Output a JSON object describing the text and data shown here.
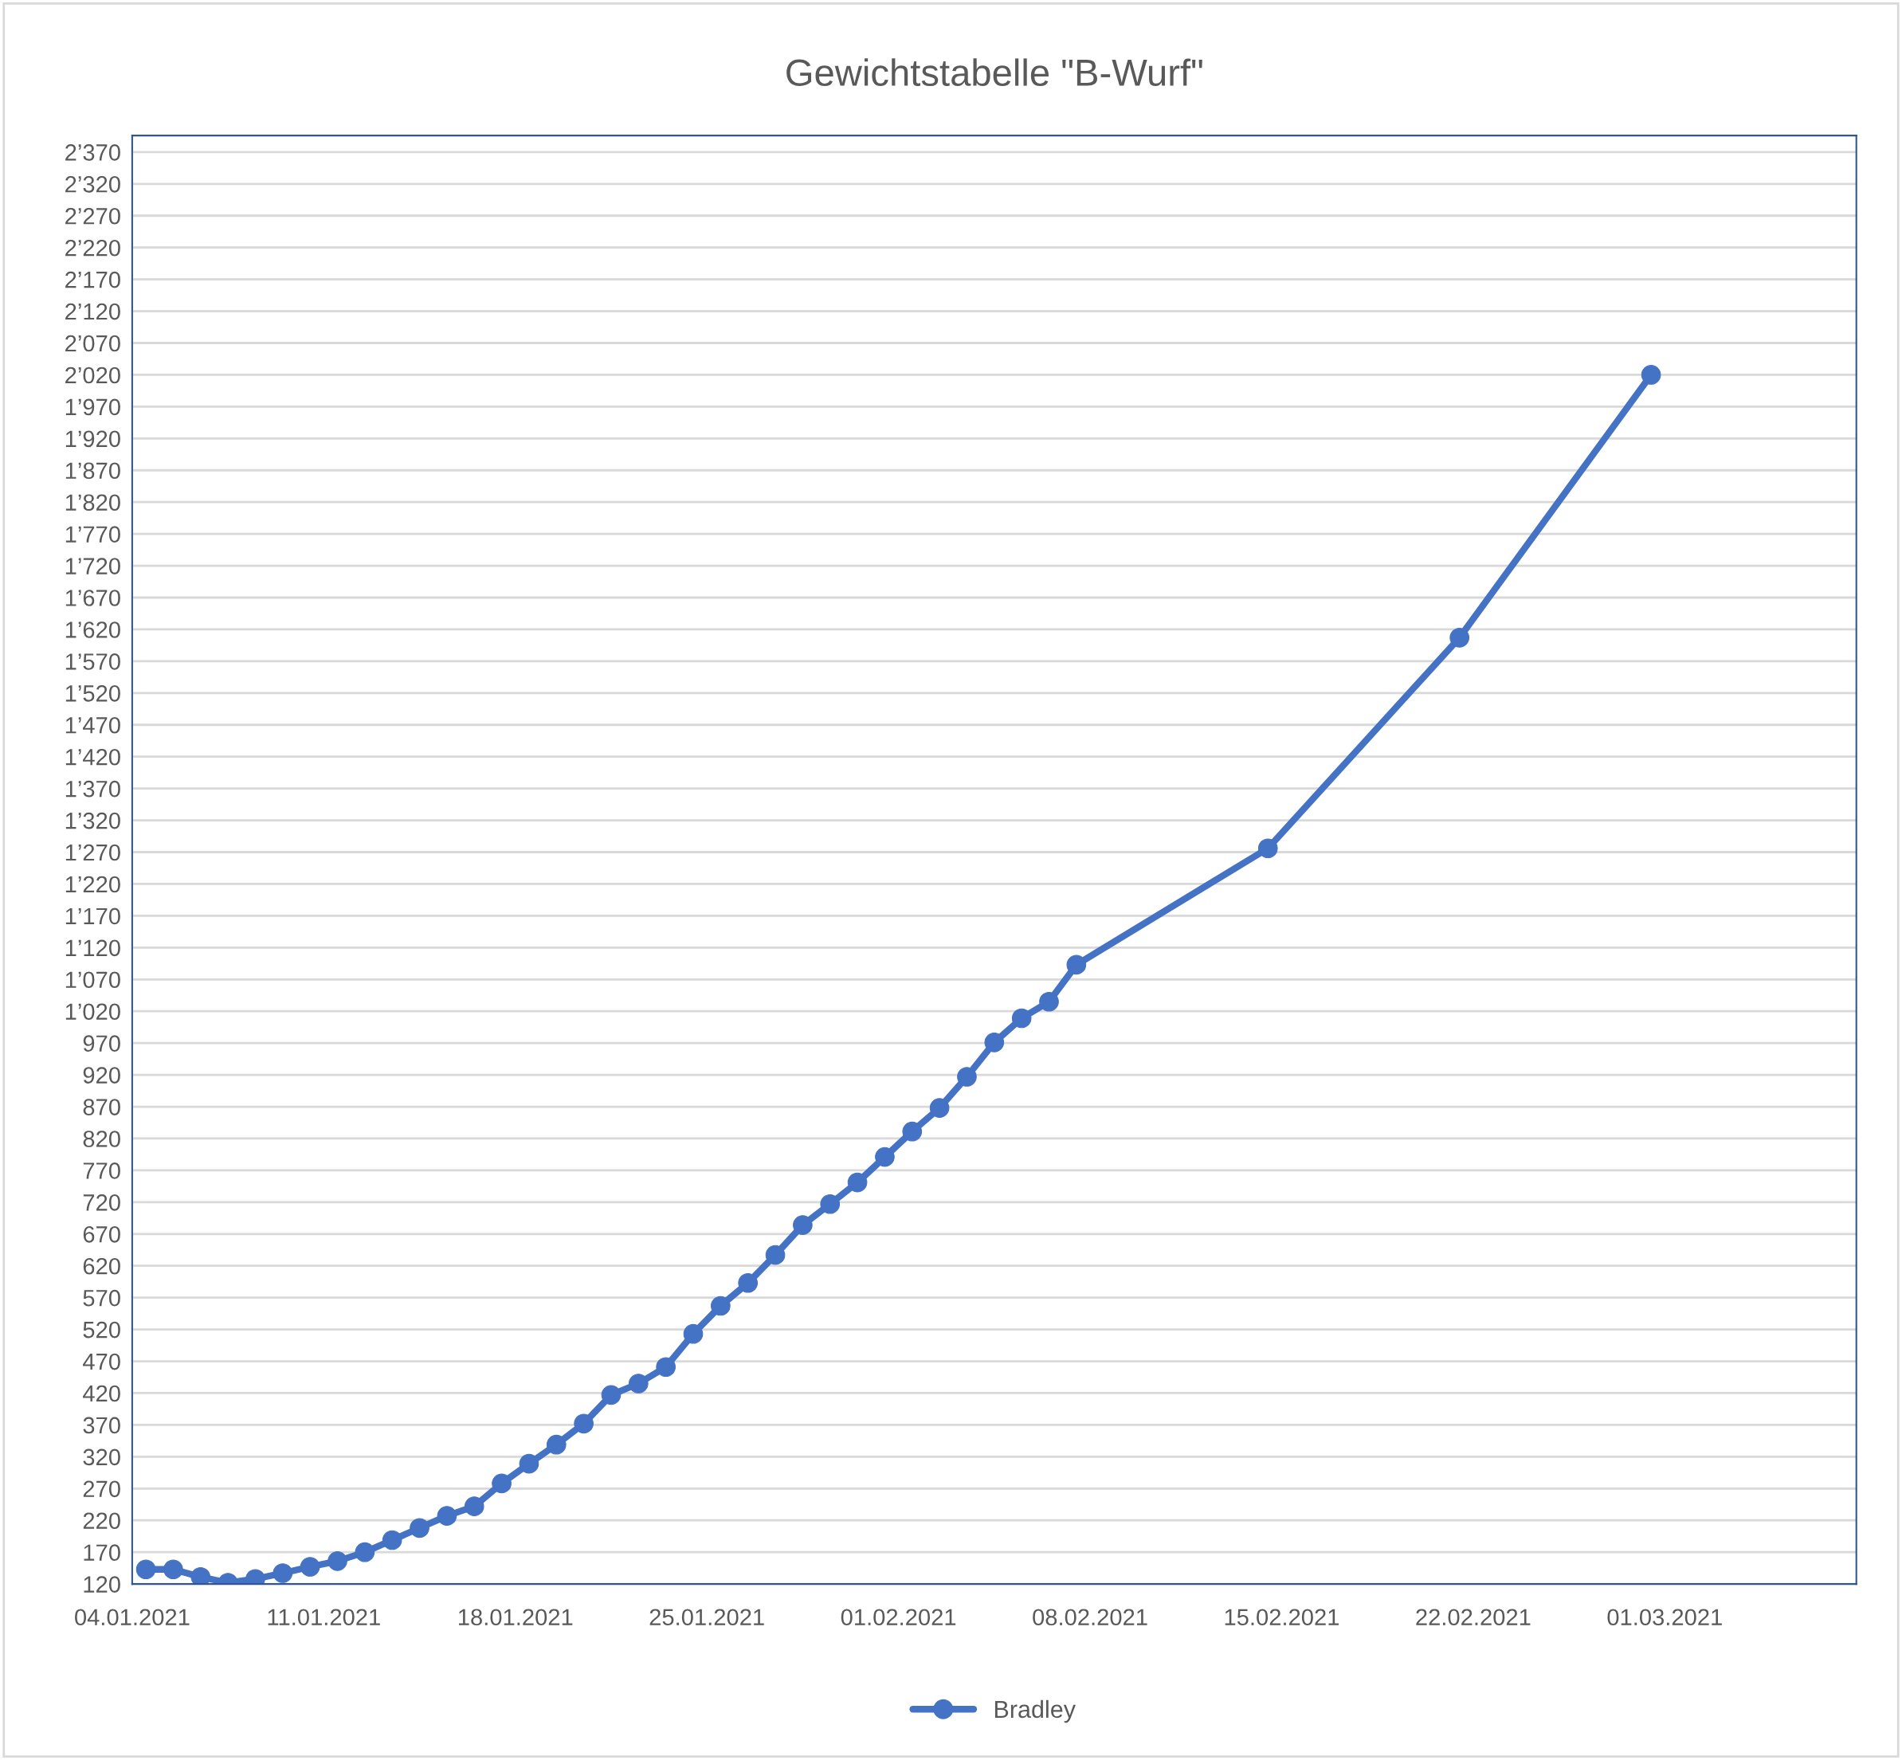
{
  "chart_data": {
    "type": "line",
    "title": "Gewichtstabelle \"B-Wurf\"",
    "x": [
      "2021-01-04T12:00",
      "2021-01-05T12:00",
      "2021-01-06T12:00",
      "2021-01-07T12:00",
      "2021-01-08T12:00",
      "2021-01-09T12:00",
      "2021-01-10T12:00",
      "2021-01-11T12:00",
      "2021-01-12T12:00",
      "2021-01-13T12:00",
      "2021-01-14T12:00",
      "2021-01-15T12:00",
      "2021-01-16T12:00",
      "2021-01-17T12:00",
      "2021-01-18T12:00",
      "2021-01-19T12:00",
      "2021-01-20T12:00",
      "2021-01-21T12:00",
      "2021-01-22T12:00",
      "2021-01-23T12:00",
      "2021-01-24T12:00",
      "2021-01-25T12:00",
      "2021-01-26T12:00",
      "2021-01-27T12:00",
      "2021-01-28T12:00",
      "2021-01-29T12:00",
      "2021-01-30T12:00",
      "2021-01-31T12:00",
      "2021-02-01T12:00",
      "2021-02-02T12:00",
      "2021-02-03T12:00",
      "2021-02-04T12:00",
      "2021-02-05T12:00",
      "2021-02-06T12:00",
      "2021-02-07T12:00",
      "2021-02-14T12:00",
      "2021-02-21T12:00",
      "2021-02-28T12:00"
    ],
    "series": [
      {
        "name": "Bradley",
        "color": "#4472c4",
        "values": [
          143,
          143,
          131,
          122,
          128,
          137,
          147,
          156,
          170,
          189,
          208,
          227,
          242,
          278,
          309,
          339,
          372,
          417,
          435,
          461,
          513,
          557,
          593,
          637,
          684,
          717,
          751,
          791,
          831,
          868,
          917,
          971,
          1009,
          1035,
          1093,
          1276,
          1607,
          2020
        ]
      }
    ],
    "xlim": [
      "2021-01-04",
      "2021-03-08"
    ],
    "xticks": [
      {
        "value": "2021-01-04",
        "label": "04.01.2021"
      },
      {
        "value": "2021-01-11",
        "label": "11.01.2021"
      },
      {
        "value": "2021-01-18",
        "label": "18.01.2021"
      },
      {
        "value": "2021-01-25",
        "label": "25.01.2021"
      },
      {
        "value": "2021-02-01",
        "label": "01.02.2021"
      },
      {
        "value": "2021-02-08",
        "label": "08.02.2021"
      },
      {
        "value": "2021-02-15",
        "label": "15.02.2021"
      },
      {
        "value": "2021-02-22",
        "label": "22.02.2021"
      },
      {
        "value": "2021-03-01",
        "label": "01.03.2021"
      },
      {
        "value": "2021-03-08",
        "label": null
      }
    ],
    "ylim": [
      120,
      2396
    ],
    "yticks": [
      120,
      170,
      220,
      270,
      320,
      370,
      420,
      470,
      520,
      570,
      620,
      670,
      720,
      770,
      820,
      870,
      920,
      970,
      {
        "value": 1020,
        "label": "1’020"
      },
      {
        "value": 1070,
        "label": "1’070"
      },
      {
        "value": 1120,
        "label": "1’120"
      },
      {
        "value": 1170,
        "label": "1’170"
      },
      {
        "value": 1220,
        "label": "1’220"
      },
      {
        "value": 1270,
        "label": "1’270"
      },
      {
        "value": 1320,
        "label": "1’320"
      },
      {
        "value": 1370,
        "label": "1’370"
      },
      {
        "value": 1420,
        "label": "1’420"
      },
      {
        "value": 1470,
        "label": "1’470"
      },
      {
        "value": 1520,
        "label": "1’520"
      },
      {
        "value": 1570,
        "label": "1’570"
      },
      {
        "value": 1620,
        "label": "1’620"
      },
      {
        "value": 1670,
        "label": "1’670"
      },
      {
        "value": 1720,
        "label": "1’720"
      },
      {
        "value": 1770,
        "label": "1’770"
      },
      {
        "value": 1820,
        "label": "1’820"
      },
      {
        "value": 1870,
        "label": "1’870"
      },
      {
        "value": 1920,
        "label": "1’920"
      },
      {
        "value": 1970,
        "label": "1’970"
      },
      {
        "value": 2020,
        "label": "2’020"
      },
      {
        "value": 2070,
        "label": "2’070"
      },
      {
        "value": 2120,
        "label": "2’120"
      },
      {
        "value": 2170,
        "label": "2’170"
      },
      {
        "value": 2220,
        "label": "2’220"
      },
      {
        "value": 2270,
        "label": "2’270"
      },
      {
        "value": 2320,
        "label": "2’320"
      },
      {
        "value": 2370,
        "label": "2’370"
      }
    ],
    "grid": "y",
    "legend": "bottom",
    "marker": "circle",
    "line_style": "solid"
  }
}
